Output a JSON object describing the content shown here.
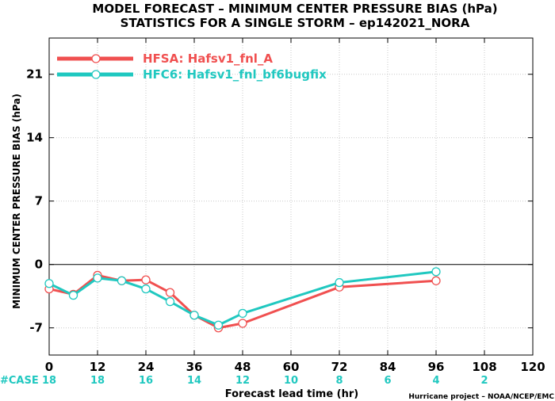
{
  "chart_data": {
    "type": "line",
    "title": "MODEL FORECAST – MINIMUM CENTER PRESSURE BIAS (hPa)",
    "subtitle": "STATISTICS FOR A SINGLE STORM – ep142021_NORA",
    "xlabel": "Forecast lead time (hr)",
    "ylabel": "MINIMUM CENTER PRESSURE BIAS (hPa)",
    "xlim": [
      0,
      120
    ],
    "ylim": [
      -10,
      25
    ],
    "xticks": [
      0,
      12,
      24,
      36,
      48,
      60,
      72,
      84,
      96,
      108,
      120
    ],
    "yticks": [
      -7,
      0,
      7,
      14,
      21
    ],
    "legend_position": "top-left",
    "series": [
      {
        "name": "HFSA: Hafsv1_fnl_A",
        "color": "#f05050",
        "x": [
          0,
          6,
          12,
          18,
          24,
          30,
          36,
          42,
          48,
          72,
          96
        ],
        "y": [
          -2.7,
          -3.3,
          -1.2,
          -1.8,
          -1.7,
          -3.1,
          -5.6,
          -7.0,
          -6.5,
          -2.5,
          -1.8
        ]
      },
      {
        "name": "HFC6: Hafsv1_fnl_bf6bugfix",
        "color": "#20c8c0",
        "x": [
          0,
          6,
          12,
          18,
          24,
          30,
          36,
          42,
          48,
          72,
          96
        ],
        "y": [
          -2.1,
          -3.4,
          -1.5,
          -1.8,
          -2.7,
          -4.1,
          -5.6,
          -6.7,
          -5.4,
          -2.0,
          -0.8
        ]
      }
    ],
    "case_counts": {
      "label": "#CASE",
      "x": [
        0,
        12,
        24,
        36,
        48,
        60,
        72,
        84,
        96,
        108
      ],
      "values": [
        "18",
        "18",
        "16",
        "14",
        "12",
        "10",
        "8",
        "6",
        "4",
        "2"
      ],
      "color": "#20c8c0"
    },
    "credit": "Hurricane project – NOAA/NCEP/EMC"
  }
}
